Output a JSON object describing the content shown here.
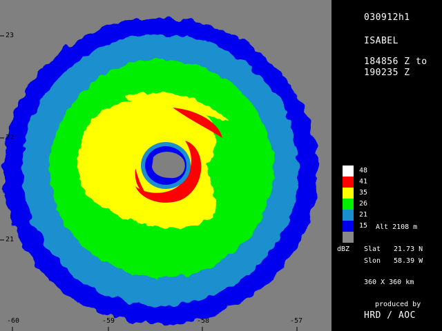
{
  "flight_id": "030912h1",
  "storm_name": "ISABEL",
  "time_range": {
    "start": "184856 Z to",
    "end": "190235 Z"
  },
  "colors": {
    "background_gray": "#808080",
    "c48": "#ffffff",
    "c41": "#ff0000",
    "c35": "#ffff00",
    "c26": "#00ee00",
    "c21": "#1a8fcf",
    "c15": "#0000ee",
    "none": "#888888"
  },
  "legend": {
    "entries": [
      {
        "value": "48",
        "color_key": "c48"
      },
      {
        "value": "41",
        "color_key": "c41"
      },
      {
        "value": "35",
        "color_key": "c35"
      },
      {
        "value": "26",
        "color_key": "c26"
      },
      {
        "value": "21",
        "color_key": "c21"
      },
      {
        "value": "15",
        "color_key": "c15"
      }
    ],
    "altitude": "Alt  2108 m",
    "unit": "dBZ"
  },
  "center": {
    "slat_label": "Slat",
    "slat_value": "21.73 N",
    "slon_label": "Slon",
    "slon_value": "58.39 W"
  },
  "domain_size": "360 X 360 km",
  "credit": {
    "line1": "produced by",
    "line2": "HRD / AOC"
  },
  "lat_ticks": [
    "23",
    "22",
    "21"
  ],
  "lon_ticks": [
    "-60",
    "-59",
    "-58",
    "-57"
  ]
}
